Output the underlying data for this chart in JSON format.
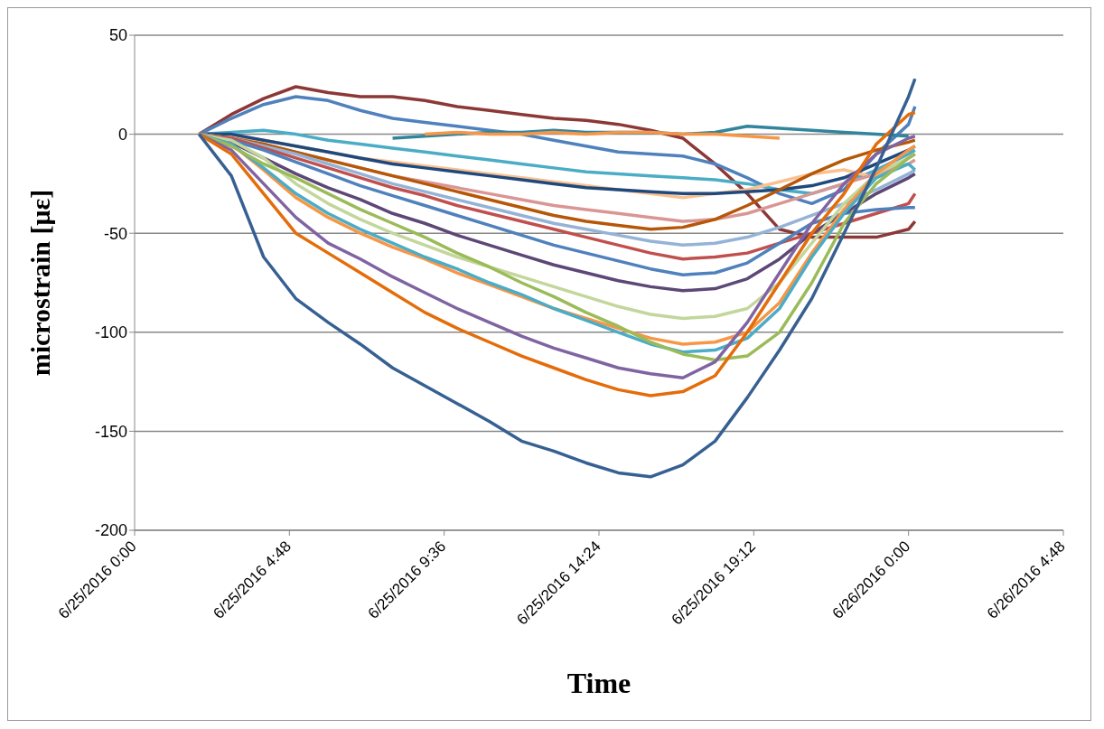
{
  "chart_data": {
    "type": "line",
    "xlabel": "Time",
    "ylabel": "microstrain [με]",
    "x": [
      "2016-06-25T02:00",
      "2016-06-25T03:00",
      "2016-06-25T04:00",
      "2016-06-25T05:00",
      "2016-06-25T06:00",
      "2016-06-25T07:00",
      "2016-06-25T08:00",
      "2016-06-25T09:00",
      "2016-06-25T10:00",
      "2016-06-25T11:00",
      "2016-06-25T12:00",
      "2016-06-25T13:00",
      "2016-06-25T14:00",
      "2016-06-25T15:00",
      "2016-06-25T16:00",
      "2016-06-25T17:00",
      "2016-06-25T18:00",
      "2016-06-25T19:00",
      "2016-06-25T20:00",
      "2016-06-25T21:00",
      "2016-06-25T22:00",
      "2016-06-25T23:00",
      "2016-06-26T00:00",
      "2016-06-26T00:12"
    ],
    "xlim": [
      "2016-06-25T00:00",
      "2016-06-26T04:48"
    ],
    "xticks": [
      {
        "value": "2016-06-25T00:00",
        "label": "6/25/2016 0:00"
      },
      {
        "value": "2016-06-25T04:48",
        "label": "6/25/2016 4:48"
      },
      {
        "value": "2016-06-25T09:36",
        "label": "6/25/2016 9:36"
      },
      {
        "value": "2016-06-25T14:24",
        "label": "6/25/2016 14:24"
      },
      {
        "value": "2016-06-25T19:12",
        "label": "6/25/2016 19:12"
      },
      {
        "value": "2016-06-26T00:00",
        "label": "6/26/2016 0:00"
      },
      {
        "value": "2016-06-26T04:48",
        "label": "6/26/2016 4:48"
      }
    ],
    "ylim": [
      -200,
      50
    ],
    "yticks": [
      -200,
      -150,
      -100,
      -50,
      0,
      50
    ],
    "grid": "y",
    "marker": "none",
    "line_style": "solid",
    "series": [
      {
        "color": "#8c3836",
        "values": [
          0,
          10,
          18,
          24,
          21,
          19,
          19,
          17,
          14,
          12,
          10,
          8,
          7,
          5,
          2,
          -2,
          -15,
          -30,
          -48,
          -52,
          -52,
          -52,
          -48,
          -44
        ]
      },
      {
        "color": "#4f81bd",
        "values": [
          0,
          8,
          15,
          19,
          17,
          12,
          8,
          6,
          4,
          2,
          0,
          -3,
          -6,
          -9,
          -10,
          -11,
          -15,
          -22,
          -30,
          -35,
          -28,
          -10,
          5,
          14
        ]
      },
      {
        "color": "#31859c",
        "x": [
          "2016-06-25T08:00",
          "2016-06-25T09:00",
          "2016-06-25T10:00",
          "2016-06-25T11:00",
          "2016-06-25T12:00",
          "2016-06-25T13:00",
          "2016-06-25T14:00",
          "2016-06-25T15:00",
          "2016-06-25T16:00",
          "2016-06-25T17:00",
          "2016-06-25T18:00",
          "2016-06-25T19:00",
          "2016-06-25T20:00",
          "2016-06-25T21:00",
          "2016-06-25T22:00",
          "2016-06-25T23:00",
          "2016-06-26T00:00"
        ],
        "values": [
          -2,
          -1,
          0,
          1,
          1,
          2,
          1,
          1,
          1,
          0,
          1,
          4,
          3,
          2,
          1,
          0,
          -1
        ]
      },
      {
        "color": "#f79646",
        "x": [
          "2016-06-25T09:00",
          "2016-06-25T10:00",
          "2016-06-25T11:00",
          "2016-06-25T12:00",
          "2016-06-25T13:00",
          "2016-06-25T14:00",
          "2016-06-25T15:00",
          "2016-06-25T16:00",
          "2016-06-25T17:00",
          "2016-06-25T18:00",
          "2016-06-25T19:00",
          "2016-06-25T20:00"
        ],
        "values": [
          0,
          1,
          0,
          0,
          1,
          0,
          1,
          1,
          0,
          0,
          -1,
          -2
        ]
      },
      {
        "color": "#4bacc6",
        "values": [
          0,
          1,
          2,
          0,
          -3,
          -5,
          -7,
          -9,
          -11,
          -13,
          -15,
          -17,
          -19,
          -20,
          -21,
          -22,
          -23,
          -25,
          -28,
          -30,
          -25,
          -18,
          -10,
          -8
        ]
      },
      {
        "color": "#fac090",
        "values": [
          0,
          -1,
          -3,
          -6,
          -9,
          -12,
          -14,
          -16,
          -18,
          -20,
          -22,
          -24,
          -26,
          -28,
          -30,
          -32,
          -30,
          -28,
          -24,
          -20,
          -18,
          -22,
          -12,
          -10
        ]
      },
      {
        "color": "#1f497d",
        "values": [
          0,
          0,
          -3,
          -6,
          -9,
          -12,
          -15,
          -17,
          -19,
          -21,
          -23,
          -25,
          -27,
          -28,
          -29,
          -30,
          -30,
          -29,
          -28,
          -26,
          -22,
          -15,
          -8,
          -6
        ]
      },
      {
        "color": "#d99694",
        "values": [
          0,
          -2,
          -5,
          -9,
          -13,
          -17,
          -21,
          -24,
          -27,
          -30,
          -33,
          -36,
          -38,
          -40,
          -42,
          -44,
          -43,
          -40,
          -35,
          -30,
          -25,
          -20,
          -15,
          -13
        ]
      },
      {
        "color": "#b65708",
        "values": [
          0,
          -2,
          -5,
          -9,
          -13,
          -17,
          -21,
          -25,
          -29,
          -33,
          -37,
          -41,
          -44,
          -46,
          -48,
          -47,
          -43,
          -36,
          -28,
          -20,
          -13,
          -8,
          -4,
          -3
        ]
      },
      {
        "color": "#95b3d7",
        "values": [
          0,
          -2,
          -6,
          -10,
          -15,
          -20,
          -25,
          -29,
          -33,
          -37,
          -41,
          -45,
          -48,
          -51,
          -54,
          -56,
          -55,
          -52,
          -47,
          -41,
          -35,
          -28,
          -20,
          -18
        ]
      },
      {
        "color": "#c0504d",
        "values": [
          0,
          -2,
          -7,
          -12,
          -17,
          -22,
          -27,
          -31,
          -36,
          -40,
          -44,
          -48,
          -52,
          -56,
          -60,
          -63,
          -62,
          -60,
          -55,
          -50,
          -45,
          -40,
          -35,
          -30
        ]
      },
      {
        "color": "#4f81bd",
        "values": [
          0,
          -3,
          -8,
          -14,
          -20,
          -26,
          -31,
          -36,
          -41,
          -46,
          -51,
          -56,
          -60,
          -64,
          -68,
          -71,
          -70,
          -65,
          -55,
          -45,
          -40,
          -38,
          -37,
          -37
        ]
      },
      {
        "color": "#5c4776",
        "values": [
          0,
          -4,
          -12,
          -20,
          -27,
          -33,
          -40,
          -45,
          -51,
          -56,
          -61,
          -66,
          -70,
          -74,
          -77,
          -79,
          -78,
          -73,
          -63,
          -50,
          -40,
          -30,
          -22,
          -20
        ]
      },
      {
        "color": "#c3d69b",
        "values": [
          0,
          -3,
          -12,
          -25,
          -35,
          -43,
          -50,
          -56,
          -62,
          -67,
          -72,
          -77,
          -82,
          -87,
          -91,
          -93,
          -92,
          -88,
          -75,
          -55,
          -35,
          -20,
          -12,
          -10
        ]
      },
      {
        "color": "#f79646",
        "values": [
          0,
          -5,
          -18,
          -32,
          -42,
          -50,
          -57,
          -63,
          -70,
          -76,
          -82,
          -88,
          -93,
          -98,
          -103,
          -106,
          -105,
          -100,
          -85,
          -60,
          -38,
          -20,
          -8,
          -6
        ]
      },
      {
        "color": "#4bacc6",
        "values": [
          0,
          -5,
          -17,
          -30,
          -40,
          -48,
          -55,
          -62,
          -68,
          -75,
          -81,
          -88,
          -94,
          -100,
          -106,
          -110,
          -109,
          -103,
          -88,
          -62,
          -40,
          -22,
          -15,
          -18
        ]
      },
      {
        "color": "#9bbb59",
        "values": [
          0,
          -6,
          -15,
          -22,
          -30,
          -38,
          -45,
          -52,
          -60,
          -67,
          -75,
          -82,
          -90,
          -97,
          -105,
          -111,
          -114,
          -112,
          -100,
          -75,
          -45,
          -25,
          -12,
          -10
        ]
      },
      {
        "color": "#8064a2",
        "values": [
          0,
          -8,
          -25,
          -42,
          -55,
          -63,
          -72,
          -80,
          -88,
          -95,
          -102,
          -108,
          -113,
          -118,
          -121,
          -123,
          -115,
          -95,
          -70,
          -45,
          -25,
          -10,
          -2,
          -1
        ]
      },
      {
        "color": "#e46c0a",
        "values": [
          0,
          -10,
          -30,
          -50,
          -60,
          -70,
          -80,
          -90,
          -98,
          -105,
          -112,
          -118,
          -124,
          -129,
          -132,
          -130,
          -122,
          -100,
          -75,
          -50,
          -30,
          -5,
          10,
          11
        ]
      },
      {
        "color": "#376092",
        "values": [
          0,
          -21,
          -62,
          -83,
          -95,
          -106,
          -118,
          -127,
          -136,
          -145,
          -155,
          -160,
          -166,
          -171,
          -173,
          -167,
          -155,
          -133,
          -109,
          -83,
          -50,
          -17,
          19,
          28
        ]
      }
    ]
  }
}
